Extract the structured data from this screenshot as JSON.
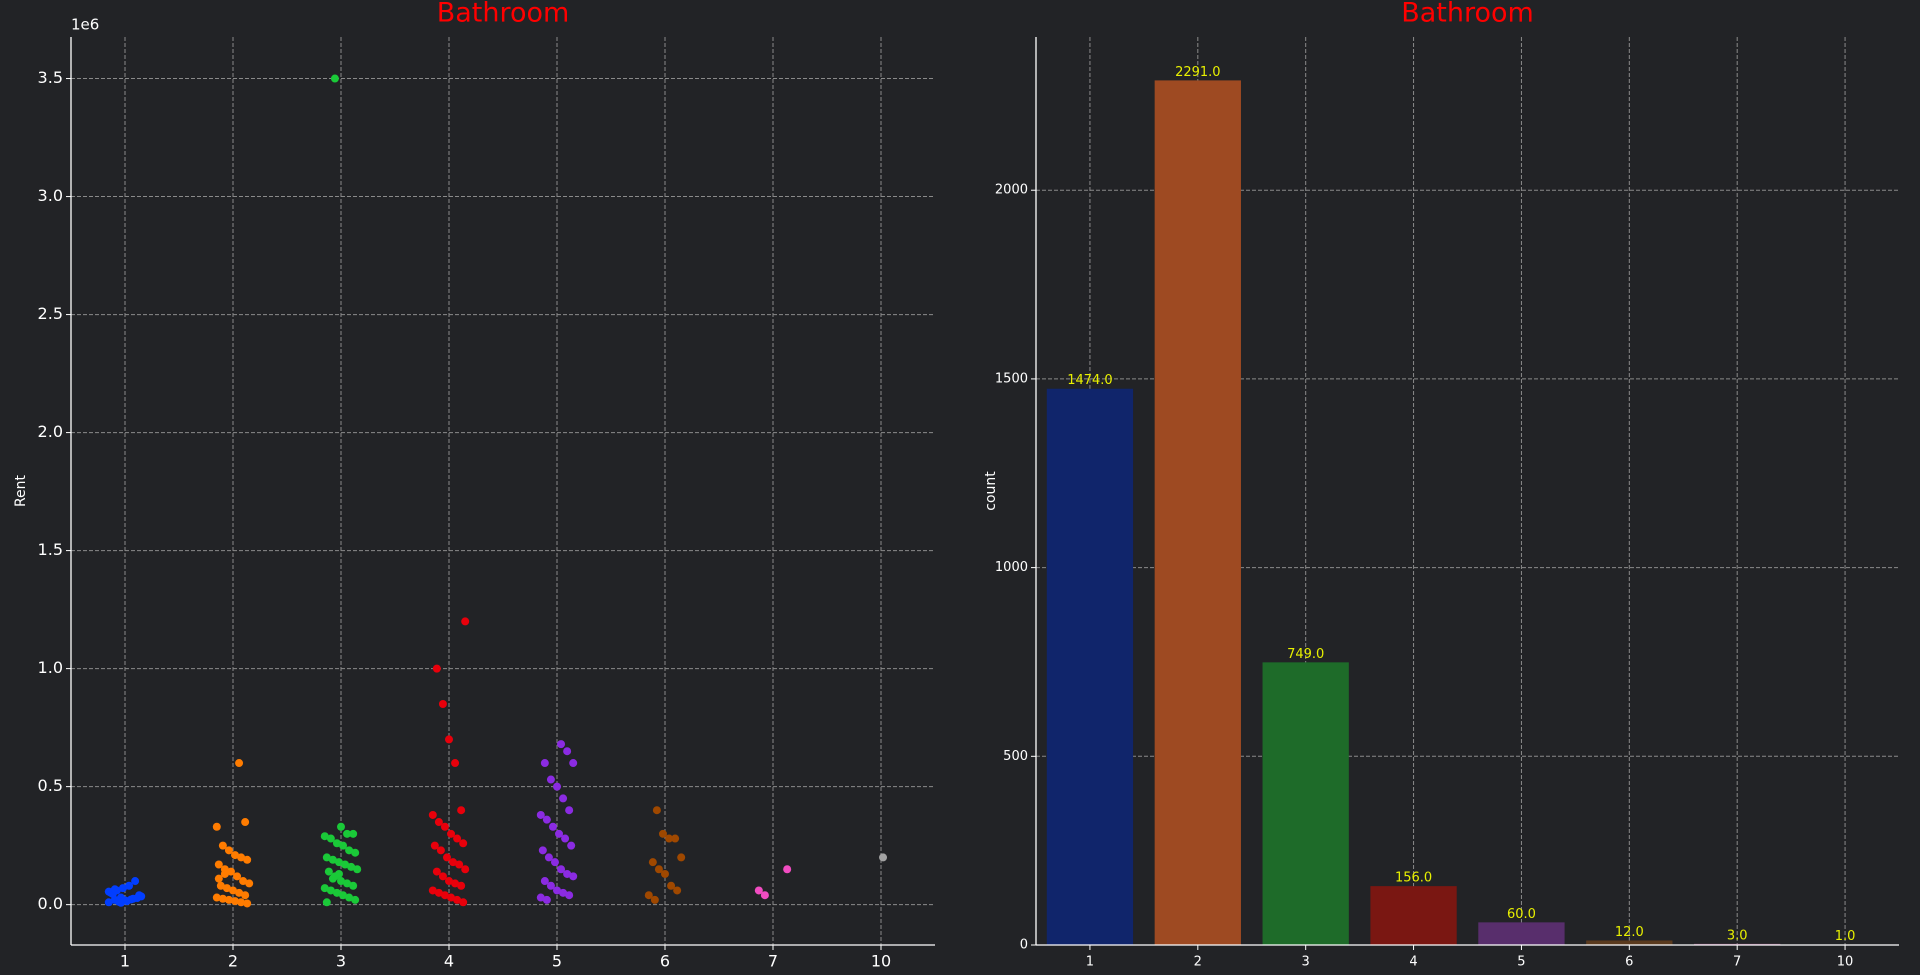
{
  "chart_data": [
    {
      "type": "strip",
      "title": "Bathroom",
      "ylabel": "Rent",
      "offset_label": "1e6",
      "categories": [
        "1",
        "2",
        "3",
        "4",
        "5",
        "6",
        "7",
        "10"
      ],
      "colors": [
        "#023eff",
        "#ff7c00",
        "#1ac938",
        "#e8000b",
        "#8b2be2",
        "#9f4800",
        "#f14cc1",
        "#a3a3a3"
      ],
      "values": [
        [
          0.01,
          0.02,
          0.03,
          0.015,
          0.025,
          0.04,
          0.05,
          0.06,
          0.07,
          0.08,
          0.1,
          0.035,
          0.045,
          0.012,
          0.018,
          0.022,
          0.028,
          0.055,
          0.065,
          0.008
        ],
        [
          0.6,
          0.35,
          0.33,
          0.25,
          0.23,
          0.21,
          0.2,
          0.19,
          0.17,
          0.15,
          0.14,
          0.12,
          0.1,
          0.09,
          0.08,
          0.07,
          0.06,
          0.05,
          0.04,
          0.03,
          0.025,
          0.02,
          0.015,
          0.01,
          0.005,
          0.11,
          0.13
        ],
        [
          3.5,
          0.33,
          0.3,
          0.3,
          0.29,
          0.28,
          0.26,
          0.25,
          0.23,
          0.22,
          0.2,
          0.19,
          0.18,
          0.17,
          0.16,
          0.15,
          0.14,
          0.12,
          0.1,
          0.09,
          0.08,
          0.07,
          0.06,
          0.05,
          0.04,
          0.03,
          0.02,
          0.01,
          0.11,
          0.13
        ],
        [
          1.2,
          1.0,
          0.85,
          0.7,
          0.6,
          0.4,
          0.38,
          0.35,
          0.33,
          0.3,
          0.28,
          0.26,
          0.25,
          0.23,
          0.2,
          0.18,
          0.17,
          0.15,
          0.14,
          0.12,
          0.1,
          0.09,
          0.08,
          0.06,
          0.05,
          0.04,
          0.03,
          0.02,
          0.01
        ],
        [
          0.68,
          0.65,
          0.6,
          0.6,
          0.53,
          0.5,
          0.45,
          0.4,
          0.38,
          0.36,
          0.33,
          0.3,
          0.28,
          0.25,
          0.23,
          0.2,
          0.18,
          0.15,
          0.13,
          0.12,
          0.1,
          0.08,
          0.06,
          0.05,
          0.04,
          0.03,
          0.02
        ],
        [
          0.4,
          0.3,
          0.28,
          0.28,
          0.2,
          0.18,
          0.15,
          0.13,
          0.08,
          0.06,
          0.04,
          0.02
        ],
        [
          0.15,
          0.06,
          0.04
        ],
        [
          0.2
        ]
      ],
      "ylim": [
        -0.171,
        3.676
      ],
      "yticks": [
        {
          "value": 0,
          "label": "0.0"
        },
        0.5,
        {
          "value": 1,
          "label": "1.0"
        },
        1.5,
        {
          "value": 2,
          "label": "2.0"
        },
        2.5,
        {
          "value": 3,
          "label": "3.0"
        },
        3.5
      ],
      "grid": true
    },
    {
      "type": "bar",
      "title": "Bathroom",
      "ylabel": "count",
      "categories": [
        "1",
        "2",
        "3",
        "4",
        "5",
        "6",
        "7",
        "10"
      ],
      "values": [
        1474,
        2291,
        749,
        156,
        60,
        12,
        3,
        1
      ],
      "value_labels": [
        "1474.0",
        "2291.0",
        "749.0",
        "156.0",
        "60.0",
        "12.0",
        "3.0",
        "1.0"
      ],
      "colors": [
        "#10256b",
        "#9e4a22",
        "#1e6b29",
        "#7a1712",
        "#582e6c",
        "#5a3a1e",
        "#8a4a78",
        "#3e3e3e"
      ],
      "ylim": [
        0,
        2406
      ],
      "yticks": [
        0,
        500,
        1000,
        1500,
        2000
      ],
      "grid": true
    }
  ]
}
